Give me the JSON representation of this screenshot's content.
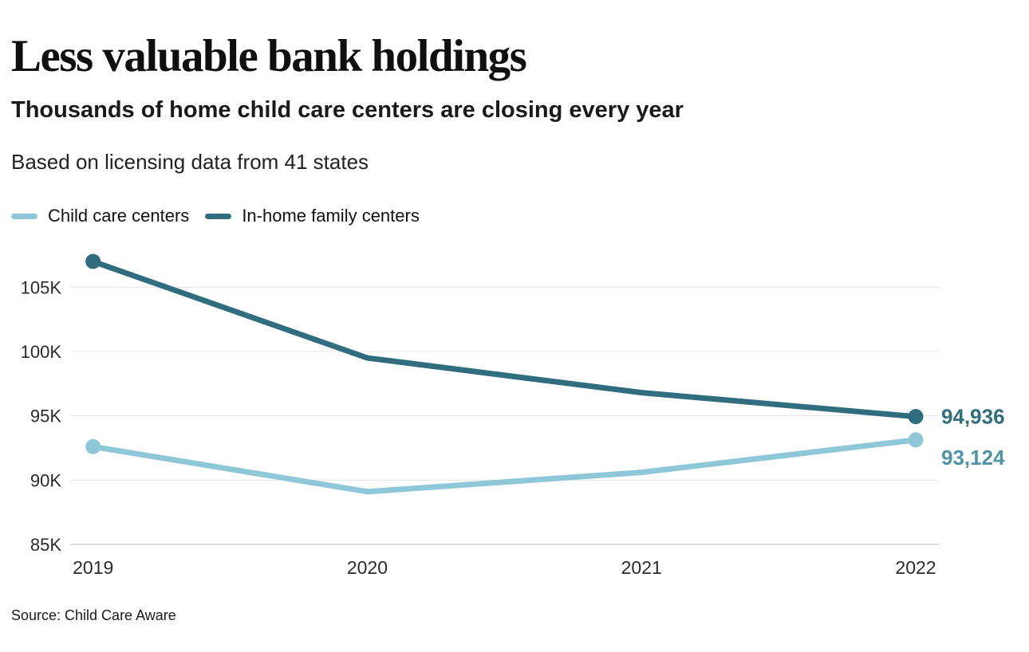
{
  "header": {
    "title": "Less valuable bank holdings",
    "subtitle": "Thousands of home child care centers are closing every year",
    "description": "Based on licensing data from 41 states"
  },
  "legend": {
    "items": [
      {
        "label": "Child care centers",
        "color": "#8ec8d8"
      },
      {
        "label": "In-home family centers",
        "color": "#2f6d7f"
      }
    ]
  },
  "source": "Source: Child Care Aware",
  "chart_data": {
    "type": "line",
    "title": "Thousands of home child care centers are closing every year",
    "x": [
      "2019",
      "2020",
      "2021",
      "2022"
    ],
    "series": [
      {
        "name": "Child care centers",
        "color": "#8ec8d8",
        "end_label": "93,124",
        "end_label_color": "#4f93a7",
        "end_label_dy": 24,
        "values": [
          92600,
          89100,
          90600,
          93124
        ]
      },
      {
        "name": "In-home family centers",
        "color": "#2f6d7f",
        "end_label": "94,936",
        "end_label_color": "#2f6d7f",
        "end_label_dy": 2,
        "values": [
          107000,
          99500,
          96800,
          94936
        ]
      }
    ],
    "ylim": [
      85000,
      108000
    ],
    "yticks": [
      85000,
      90000,
      95000,
      100000,
      105000
    ],
    "ytick_labels": [
      "85K",
      "90K",
      "95K",
      "100K",
      "105K"
    ],
    "grid": "horizontal",
    "legend_position": "top-left",
    "markers": "endpoints-only",
    "axis_color": "#cfcfcf",
    "gridline_color": "#e4e4e4",
    "tick_label_color": "#2b2b2b"
  }
}
